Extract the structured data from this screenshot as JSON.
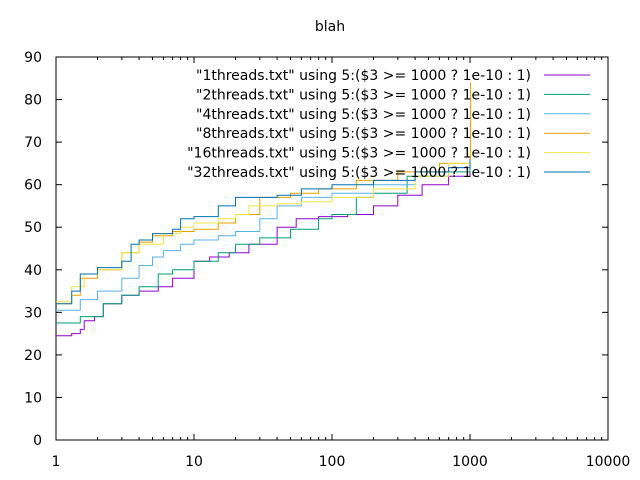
{
  "chart_data": {
    "type": "line",
    "title": "blah",
    "xlabel": "",
    "ylabel": "",
    "xscale": "log",
    "xlim": [
      1,
      10000
    ],
    "ylim": [
      0,
      90
    ],
    "x_ticks": [
      1,
      10,
      100,
      1000,
      10000
    ],
    "x_tick_labels": [
      "1",
      "10",
      "100",
      "1000",
      "10000"
    ],
    "y_ticks": [
      0,
      10,
      20,
      30,
      40,
      50,
      60,
      70,
      80,
      90
    ],
    "y_tick_labels": [
      "0",
      "10",
      "20",
      "30",
      "40",
      "50",
      "60",
      "70",
      "80",
      "90"
    ],
    "grid": false,
    "legend_position": "top-right",
    "series": [
      {
        "name": "\"1threads.txt\" using 5:($3 >= 1000 ? 1e-10 : 1)",
        "color": "#9400d3",
        "points": [
          [
            1,
            24.5
          ],
          [
            1.3,
            25
          ],
          [
            1.5,
            26
          ],
          [
            1.6,
            28
          ],
          [
            1.9,
            29
          ],
          [
            2.2,
            32
          ],
          [
            3,
            34
          ],
          [
            4,
            35
          ],
          [
            5.5,
            36
          ],
          [
            7,
            38
          ],
          [
            10,
            42
          ],
          [
            13,
            43
          ],
          [
            18,
            44
          ],
          [
            25,
            46
          ],
          [
            40,
            50
          ],
          [
            55,
            52
          ],
          [
            80,
            52.5
          ],
          [
            130,
            53
          ],
          [
            200,
            55
          ],
          [
            300,
            57.5
          ],
          [
            450,
            60
          ],
          [
            700,
            62
          ],
          [
            1000,
            64
          ]
        ]
      },
      {
        "name": "\"2threads.txt\" using 5:($3 >= 1000 ? 1e-10 : 1)",
        "color": "#009e73",
        "points": [
          [
            1,
            27.5
          ],
          [
            1.5,
            29
          ],
          [
            2.2,
            32
          ],
          [
            3,
            34
          ],
          [
            4,
            36
          ],
          [
            5.5,
            39
          ],
          [
            7,
            40
          ],
          [
            10,
            42
          ],
          [
            15,
            44
          ],
          [
            20,
            46
          ],
          [
            30,
            47.5
          ],
          [
            50,
            49.5
          ],
          [
            80,
            52
          ],
          [
            100,
            53
          ],
          [
            150,
            57
          ],
          [
            200,
            58
          ],
          [
            350,
            62
          ],
          [
            600,
            63
          ],
          [
            1000,
            65
          ]
        ]
      },
      {
        "name": "\"4threads.txt\" using 5:($3 >= 1000 ? 1e-10 : 1)",
        "color": "#56b4e9",
        "points": [
          [
            1,
            30.5
          ],
          [
            1.5,
            33
          ],
          [
            2,
            35
          ],
          [
            3,
            38
          ],
          [
            4,
            41
          ],
          [
            5,
            43
          ],
          [
            6,
            44.5
          ],
          [
            8,
            46
          ],
          [
            10,
            47
          ],
          [
            15,
            48
          ],
          [
            20,
            49
          ],
          [
            30,
            52
          ],
          [
            40,
            55
          ],
          [
            60,
            57
          ],
          [
            100,
            58
          ],
          [
            200,
            60
          ],
          [
            400,
            62
          ],
          [
            700,
            64
          ],
          [
            1000,
            66
          ]
        ]
      },
      {
        "name": "\"8threads.txt\" using 5:($3 >= 1000 ? 1e-10 : 1)",
        "color": "#e69f00",
        "points": [
          [
            1,
            32
          ],
          [
            1.3,
            34
          ],
          [
            1.5,
            38
          ],
          [
            2,
            40
          ],
          [
            3,
            44
          ],
          [
            4,
            46.5
          ],
          [
            5,
            48
          ],
          [
            7,
            49
          ],
          [
            10,
            49.5
          ],
          [
            15,
            51
          ],
          [
            20,
            53
          ],
          [
            30,
            57
          ],
          [
            50,
            58
          ],
          [
            80,
            59
          ],
          [
            150,
            61
          ],
          [
            300,
            63
          ],
          [
            600,
            65
          ],
          [
            1000,
            66
          ],
          [
            1010,
            84
          ]
        ]
      },
      {
        "name": "\"16threads.txt\" using 5:($3 >= 1000 ? 1e-10 : 1)",
        "color": "#f0e442",
        "points": [
          [
            1,
            32.5
          ],
          [
            1.3,
            36
          ],
          [
            1.6,
            39
          ],
          [
            2,
            40
          ],
          [
            3,
            44
          ],
          [
            4,
            46
          ],
          [
            6,
            48.5
          ],
          [
            8,
            50
          ],
          [
            10,
            51
          ],
          [
            15,
            52
          ],
          [
            20,
            53
          ],
          [
            25,
            55
          ],
          [
            40,
            55.5
          ],
          [
            60,
            56
          ],
          [
            100,
            57
          ],
          [
            200,
            59
          ],
          [
            400,
            62
          ],
          [
            700,
            65
          ],
          [
            1000,
            68
          ]
        ]
      },
      {
        "name": "\"32threads.txt\" using 5:($3 >= 1000 ? 1e-10 : 1)",
        "color": "#0072b2",
        "points": [
          [
            1,
            32
          ],
          [
            1.3,
            35
          ],
          [
            1.5,
            39
          ],
          [
            2,
            40.5
          ],
          [
            3,
            42
          ],
          [
            3.5,
            46
          ],
          [
            4,
            47
          ],
          [
            5,
            48.5
          ],
          [
            7,
            49.5
          ],
          [
            8,
            52
          ],
          [
            10,
            52.5
          ],
          [
            15,
            55
          ],
          [
            20,
            57
          ],
          [
            40,
            57.5
          ],
          [
            60,
            59
          ],
          [
            100,
            60
          ],
          [
            200,
            61
          ],
          [
            400,
            63
          ],
          [
            700,
            64
          ],
          [
            1000,
            66
          ]
        ]
      }
    ]
  }
}
